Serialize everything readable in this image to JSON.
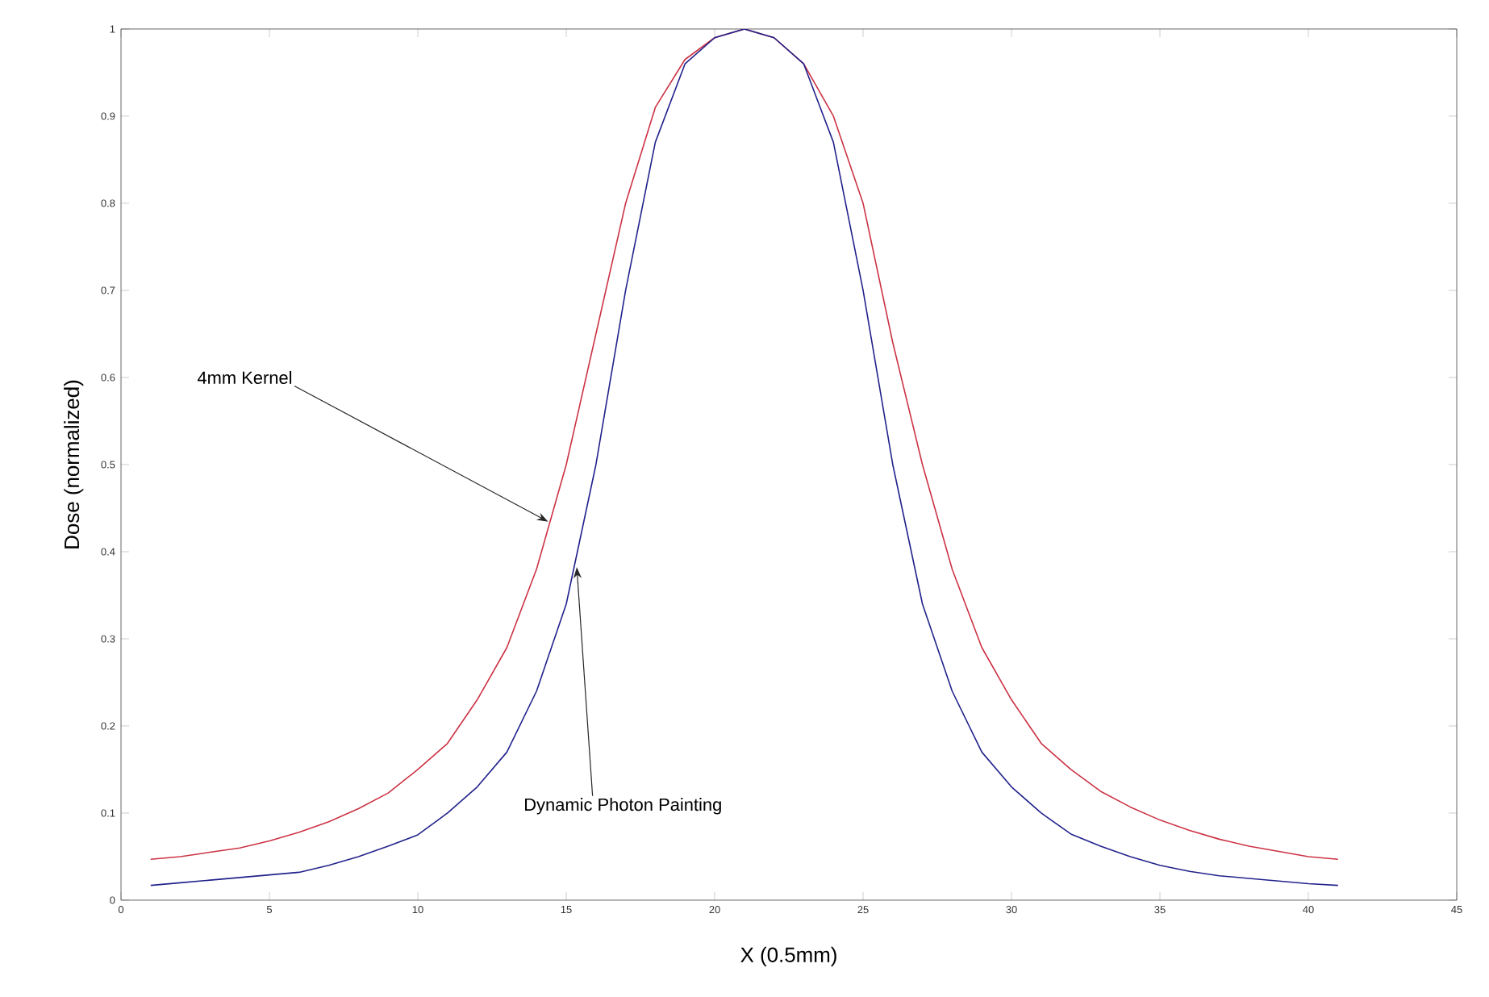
{
  "chart_data": {
    "type": "line",
    "xlabel": "X (0.5mm)",
    "ylabel": "Dose (normalized)",
    "x": [
      1,
      2,
      3,
      4,
      5,
      6,
      7,
      8,
      9,
      10,
      11,
      12,
      13,
      14,
      15,
      16,
      17,
      18,
      19,
      20,
      21,
      22,
      23,
      24,
      25,
      26,
      27,
      28,
      29,
      30,
      31,
      32,
      33,
      34,
      35,
      36,
      37,
      38,
      39,
      40,
      41
    ],
    "series": [
      {
        "color": "#cc3344",
        "values": [
          0.047,
          0.05,
          0.055,
          0.06,
          0.068,
          0.078,
          0.09,
          0.105,
          0.123,
          0.15,
          0.18,
          0.23,
          0.29,
          0.38,
          0.5,
          0.65,
          0.8,
          0.91,
          0.965,
          0.99,
          1,
          0.99,
          0.96,
          0.9,
          0.8,
          0.64,
          0.5,
          0.38,
          0.29,
          0.23,
          0.18,
          0.15,
          0.125,
          0.107,
          0.092,
          0.08,
          0.07,
          0.062,
          0.056,
          0.05,
          0.047
        ]
      },
      {
        "color": "#22228c",
        "values": [
          0.017,
          0.02,
          0.023,
          0.026,
          0.029,
          0.032,
          0.04,
          0.05,
          0.062,
          0.075,
          0.1,
          0.13,
          0.17,
          0.24,
          0.34,
          0.5,
          0.7,
          0.87,
          0.96,
          0.99,
          1,
          0.99,
          0.96,
          0.87,
          0.7,
          0.5,
          0.34,
          0.24,
          0.17,
          0.13,
          0.1,
          0.076,
          0.062,
          0.05,
          0.04,
          0.033,
          0.028,
          0.025,
          0.022,
          0.019,
          0.017
        ]
      }
    ],
    "annotations": [
      {
        "text": "4mm Kernel",
        "x": 14.5,
        "y": 0.44
      },
      {
        "text": "Dynamic Photon Painting",
        "x": 15.3,
        "y": 0.388
      }
    ],
    "xlim": [
      0,
      45
    ],
    "xticks": [
      0,
      5,
      10,
      15,
      20,
      25,
      30,
      35,
      40,
      45
    ],
    "ylim": [
      0,
      1
    ],
    "yticks": [
      0,
      0.1,
      0.2,
      0.3,
      0.4,
      0.5,
      0.6,
      0.7,
      0.8,
      0.9,
      1
    ],
    "marker": "none",
    "line_style": "solid"
  }
}
